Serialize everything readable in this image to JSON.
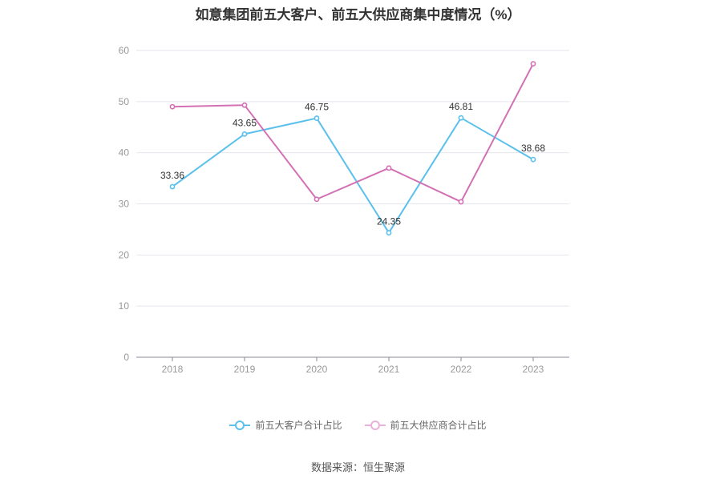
{
  "chart_data": {
    "type": "line",
    "title": "如意集团前五大客户、前五大供应商集中度情况（%）",
    "x": [
      "2018",
      "2019",
      "2020",
      "2021",
      "2022",
      "2023"
    ],
    "ylim": [
      0,
      60
    ],
    "yticks": [
      0,
      10,
      20,
      30,
      40,
      50,
      60
    ],
    "grid": true,
    "legend_position": "bottom",
    "series": [
      {
        "name": "前五大客户合计占比",
        "color": "#5bc0eb",
        "values": [
          33.36,
          43.65,
          46.75,
          24.35,
          46.81,
          38.68
        ],
        "labels": [
          "33.36",
          "43.65",
          "46.75",
          "24.35",
          "46.81",
          "38.68"
        ]
      },
      {
        "name": "前五大供应商合计占比",
        "color": "#d36fb4",
        "values": [
          49.0,
          49.3,
          30.9,
          37.0,
          30.4,
          57.4
        ],
        "labels": []
      }
    ]
  },
  "source": "数据来源：恒生聚源"
}
